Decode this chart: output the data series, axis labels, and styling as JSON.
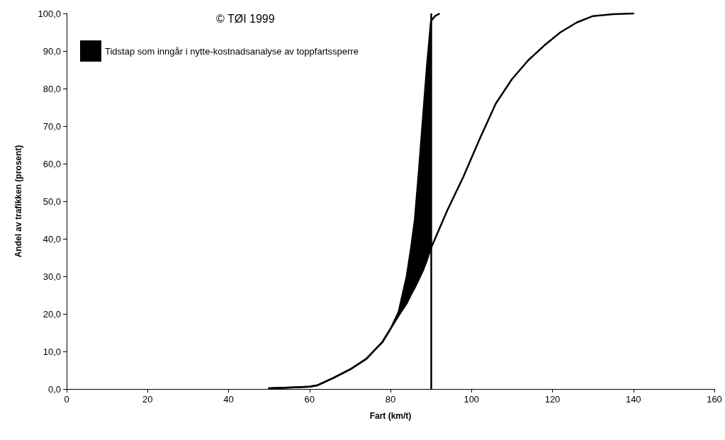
{
  "chart_data": {
    "type": "line",
    "xlabel": "Fart (km/t)",
    "ylabel": "Andel av trafikken (prosent)",
    "annotations": [
      "© TØI 1999"
    ],
    "xlim": [
      0,
      160
    ],
    "xticks": [
      0,
      20,
      40,
      60,
      80,
      100,
      120,
      140,
      160
    ],
    "ylim": [
      0,
      100
    ],
    "yticks": [
      {
        "value": 0,
        "label": "0,0"
      },
      {
        "value": 10,
        "label": "10,0"
      },
      {
        "value": 20,
        "label": "20,0"
      },
      {
        "value": 30,
        "label": "30,0"
      },
      {
        "value": 40,
        "label": "40,0"
      },
      {
        "value": 50,
        "label": "50,0"
      },
      {
        "value": 60,
        "label": "60,0"
      },
      {
        "value": 70,
        "label": "70,0"
      },
      {
        "value": 80,
        "label": "80,0"
      },
      {
        "value": 90,
        "label": "90,0"
      },
      {
        "value": 100,
        "label": "100,0"
      }
    ],
    "grid": false,
    "legend": "top left",
    "marker": "none",
    "line_style": "solid",
    "series": [
      {
        "type": "line",
        "color": "#000000",
        "x": [
          50,
          55,
          60,
          62,
          66,
          70,
          74,
          78,
          80,
          82,
          84,
          85,
          86,
          87,
          88,
          89,
          90,
          94,
          98,
          102,
          106,
          110,
          114,
          118,
          122,
          126,
          130,
          135,
          140
        ],
        "values": [
          0.2,
          0.4,
          0.6,
          1.0,
          3.0,
          5.2,
          8.0,
          12.5,
          16,
          19.5,
          22.8,
          25,
          27,
          29.2,
          31.5,
          34.3,
          37.5,
          47.5,
          56.5,
          66.5,
          76,
          82.5,
          87.5,
          91.5,
          95,
          97.6,
          99.3,
          99.8,
          100
        ]
      },
      {
        "name": "Tidstap som inngår i nytte-kostnadsanalyse av toppfartssperre",
        "color": "#000000",
        "x": [
          50,
          55,
          60,
          62,
          66,
          70,
          74,
          78,
          80,
          82,
          84,
          85,
          86,
          87,
          88,
          89,
          90,
          91,
          92
        ],
        "values": [
          0.2,
          0.4,
          0.6,
          1.0,
          3.0,
          5.2,
          8.0,
          12.5,
          16,
          20.5,
          30,
          37,
          45,
          58,
          72,
          86,
          98,
          99.3,
          99.9
        ],
        "lower": [
          null,
          null,
          null,
          null,
          null,
          null,
          null,
          null,
          16,
          19.5,
          22.8,
          25,
          27,
          29.2,
          31.5,
          34.3,
          37.5,
          null,
          null
        ],
        "upper": [
          null,
          null,
          null,
          null,
          null,
          null,
          null,
          null,
          16,
          20.5,
          30,
          37,
          45,
          58,
          72,
          86,
          98,
          null,
          null
        ]
      }
    ],
    "ref_lines": [
      {
        "axis": "x",
        "value": 90,
        "label": null,
        "color": "#000000",
        "line_style": "solid"
      }
    ]
  }
}
